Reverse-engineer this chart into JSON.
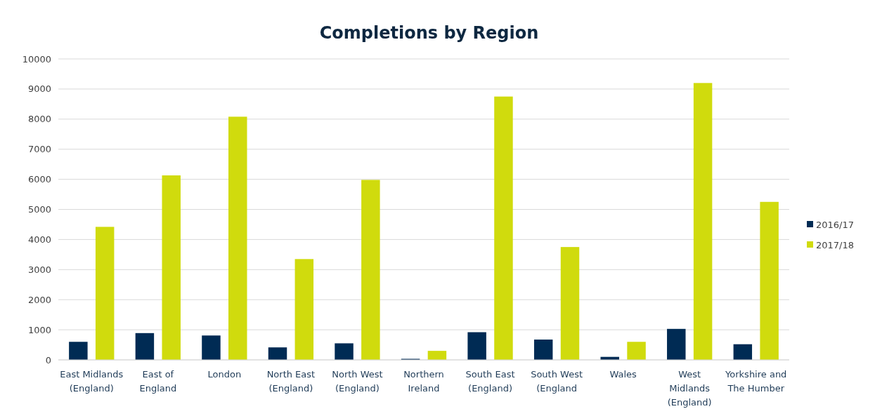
{
  "chart_data": {
    "type": "bar",
    "title": "Completions by Region",
    "categories": [
      "East Midlands\n(England)",
      "East of\nEngland",
      "London",
      "North East\n(England)",
      "North West\n(England)",
      "Northern\nIreland",
      "South East\n(England)",
      "South West\n(England",
      "Wales",
      "West\nMidlands\n(England)",
      "Yorkshire and\nThe Humber"
    ],
    "series": [
      {
        "name": "2016/17",
        "color": "#002b54",
        "values": [
          600,
          890,
          810,
          415,
          550,
          35,
          920,
          675,
          100,
          1030,
          520
        ]
      },
      {
        "name": "2017/18",
        "color": "#d0db0d",
        "values": [
          4420,
          6130,
          8080,
          3350,
          5980,
          300,
          8750,
          3750,
          600,
          9200,
          5250
        ]
      }
    ],
    "ylim": [
      0,
      10000
    ],
    "yticks": [
      0,
      1000,
      2000,
      3000,
      4000,
      5000,
      6000,
      7000,
      8000,
      9000,
      10000
    ],
    "grid": "y",
    "legend": "right"
  }
}
